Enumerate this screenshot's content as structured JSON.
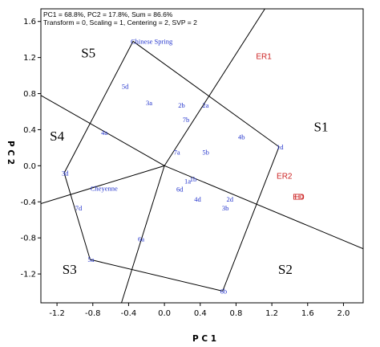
{
  "chart_data": {
    "type": "scatter",
    "header": {
      "line1": "PC1 = 68.8%, PC2 = 17.8%, Sum = 86.6%",
      "line2": "Transform = 0, Scaling = 1, Centering = 2, SVP = 2"
    },
    "xlabel": "P C 1",
    "ylabel": "P C 2",
    "xlim": [
      -1.38,
      2.22
    ],
    "ylim": [
      -1.52,
      1.74
    ],
    "x_ticks": [
      -1.2,
      -0.8,
      -0.4,
      0.0,
      0.4,
      0.8,
      1.2,
      1.6,
      2.0
    ],
    "y_ticks": [
      -1.2,
      -0.8,
      -0.4,
      0.0,
      0.4,
      0.8,
      1.2,
      1.6
    ],
    "genotype_color": "#2233cc",
    "environment_color": "#cc2222",
    "genotypes": [
      {
        "label": "Chinese Spring",
        "x": -0.35,
        "y": 1.38
      },
      {
        "label": "5d",
        "x": -0.45,
        "y": 0.88
      },
      {
        "label": "3a",
        "x": -0.18,
        "y": 0.7
      },
      {
        "label": "2b",
        "x": 0.18,
        "y": 0.67
      },
      {
        "label": "2a",
        "x": 0.45,
        "y": 0.67
      },
      {
        "label": "7b",
        "x": 0.23,
        "y": 0.51
      },
      {
        "label": "4a",
        "x": -0.68,
        "y": 0.37
      },
      {
        "label": "4b",
        "x": 0.85,
        "y": 0.32
      },
      {
        "label": "1d",
        "x": 1.28,
        "y": 0.21
      },
      {
        "label": "7a",
        "x": 0.13,
        "y": 0.15
      },
      {
        "label": "5b",
        "x": 0.45,
        "y": 0.15
      },
      {
        "label": "3d",
        "x": -1.12,
        "y": -0.08
      },
      {
        "label": "1a",
        "x": 0.25,
        "y": -0.17
      },
      {
        "label": "1b",
        "x": 0.31,
        "y": -0.15
      },
      {
        "label": "Cheyenne",
        "x": -0.8,
        "y": -0.25
      },
      {
        "label": "6d",
        "x": 0.16,
        "y": -0.26
      },
      {
        "label": "4d",
        "x": 0.36,
        "y": -0.37
      },
      {
        "label": "2d",
        "x": 0.72,
        "y": -0.37
      },
      {
        "label": "3b",
        "x": 0.67,
        "y": -0.47
      },
      {
        "label": "7d",
        "x": -0.97,
        "y": -0.47
      },
      {
        "label": "6a",
        "x": -0.27,
        "y": -0.81
      },
      {
        "label": "5a",
        "x": -0.83,
        "y": -1.04
      },
      {
        "label": "6b",
        "x": 0.65,
        "y": -1.39
      }
    ],
    "environments": [
      {
        "label": "ER1",
        "x": 1.05,
        "y": 1.22
      },
      {
        "label": "ER2",
        "x": 1.28,
        "y": -0.11
      },
      {
        "label": "ED",
        "x": 1.46,
        "y": -0.34
      },
      {
        "label": "E0",
        "x": 1.48,
        "y": -0.34
      }
    ],
    "hull_vertices": [
      "Chinese Spring",
      "1d",
      "6b",
      "5a",
      "3d"
    ],
    "sector_rays": [
      {
        "x": 1.58,
        "y": 2.45
      },
      {
        "x": 2.22,
        "y": -0.92
      },
      {
        "x": -0.48,
        "y": -1.52
      },
      {
        "x": -1.38,
        "y": -0.42
      },
      {
        "x": -1.38,
        "y": 0.78
      }
    ],
    "sectors": [
      {
        "label": "S1",
        "x": 1.75,
        "y": 0.38
      },
      {
        "label": "S2",
        "x": 1.35,
        "y": -1.2
      },
      {
        "label": "S3",
        "x": -1.06,
        "y": -1.2
      },
      {
        "label": "S4",
        "x": -1.2,
        "y": 0.28
      },
      {
        "label": "S5",
        "x": -0.85,
        "y": 1.2
      }
    ],
    "grid": false
  }
}
